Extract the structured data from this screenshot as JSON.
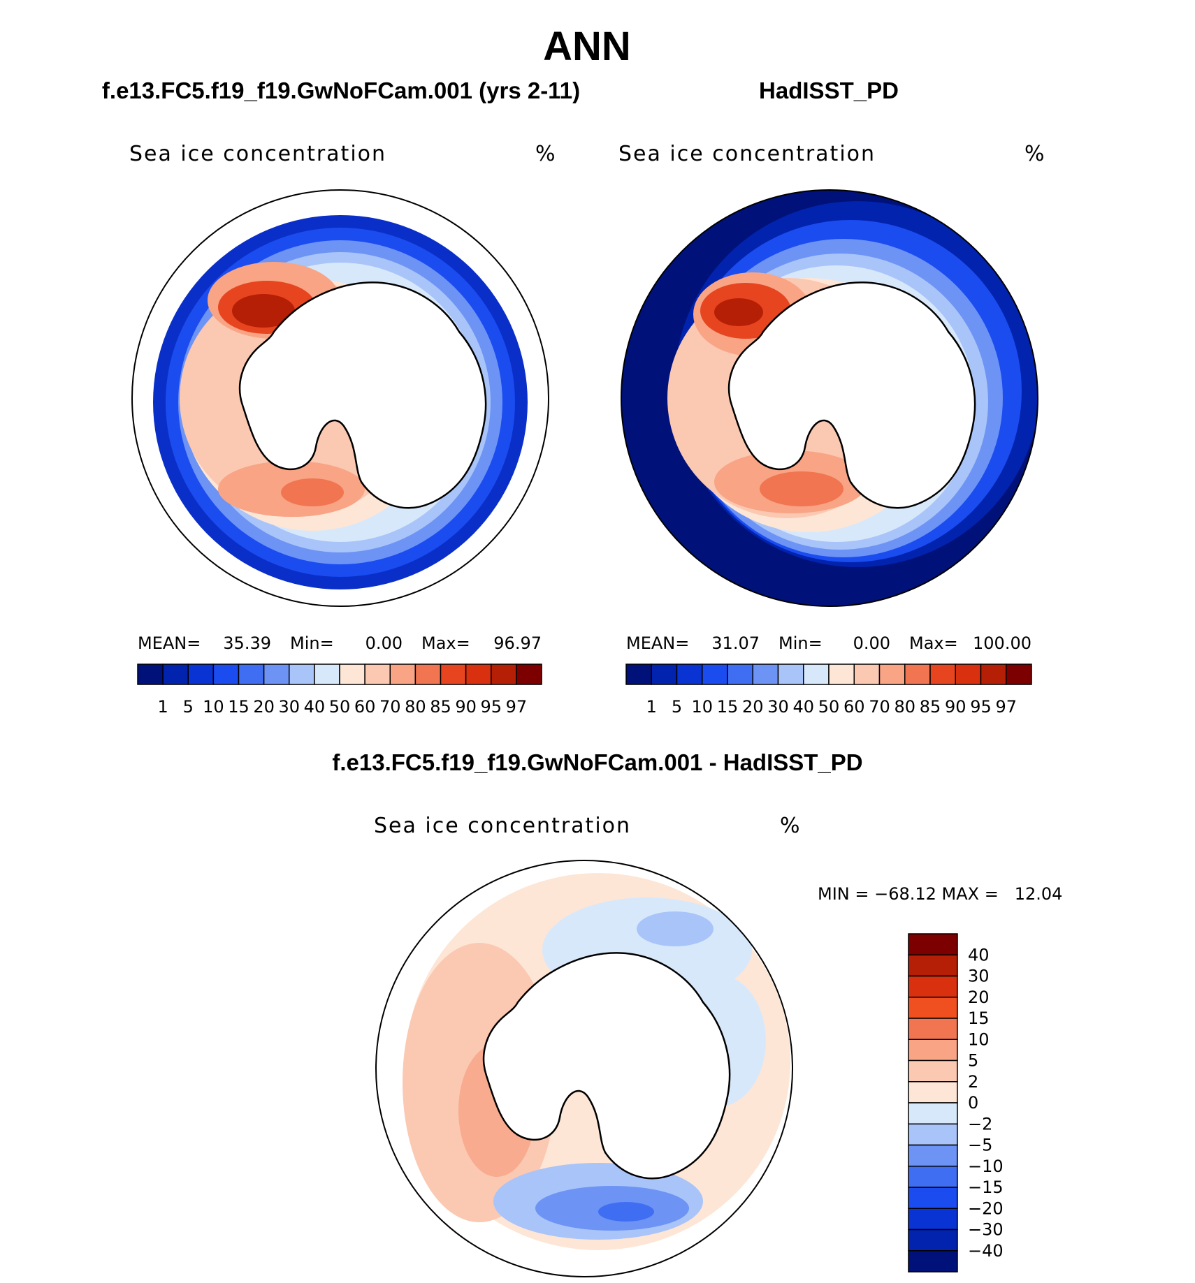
{
  "header": {
    "season": "ANN",
    "case_name": "f.e13.FC5.f19_f19.GwNoFCam.001 (yrs 2-11)",
    "control_name": "HadISST_PD",
    "diff_title": "f.e13.FC5.f19_f19.GwNoFCam.001 - HadISST_PD"
  },
  "panels": {
    "case": {
      "variable": "Sea ice concentration",
      "units": "%",
      "mean_label": "MEAN=",
      "mean": "35.39",
      "min_label": "Min=",
      "min": "0.00",
      "max_label": "Max=",
      "max": "96.97"
    },
    "control": {
      "variable": "Sea ice concentration",
      "units": "%",
      "mean_label": "MEAN=",
      "mean": "31.07",
      "min_label": "Min=",
      "min": "0.00",
      "max_label": "Max=",
      "max": "100.00"
    },
    "diff": {
      "variable": "Sea ice concentration",
      "units": "%",
      "minmax_text": "MIN = −68.12 MAX =   12.04"
    }
  },
  "colorbars": {
    "abs": {
      "levels": [
        "1",
        "5",
        "10",
        "15",
        "20",
        "30",
        "40",
        "50",
        "60",
        "70",
        "80",
        "85",
        "90",
        "95",
        "97"
      ],
      "colors": [
        "#00127a",
        "#0223ae",
        "#0a33d4",
        "#1a4cf0",
        "#3f6ef2",
        "#6d93f5",
        "#a9c4f9",
        "#d8e8fb",
        "#fde6d6",
        "#fbc8b2",
        "#f8a485",
        "#f07550",
        "#e6451f",
        "#d93010",
        "#b51f06",
        "#7d0000"
      ]
    },
    "diff": {
      "levels": [
        "40",
        "30",
        "20",
        "15",
        "10",
        "5",
        "2",
        "0",
        "−2",
        "−5",
        "−10",
        "−15",
        "−20",
        "−30",
        "−40"
      ],
      "colors": [
        "#7d0000",
        "#b51f06",
        "#d93010",
        "#f05020",
        "#f07550",
        "#f8a485",
        "#fbc8b2",
        "#fde6d6",
        "#d8e8fb",
        "#a9c4f9",
        "#6d93f5",
        "#3f6ef2",
        "#1a4cf0",
        "#0a33d4",
        "#0223ae",
        "#00127a"
      ]
    }
  }
}
